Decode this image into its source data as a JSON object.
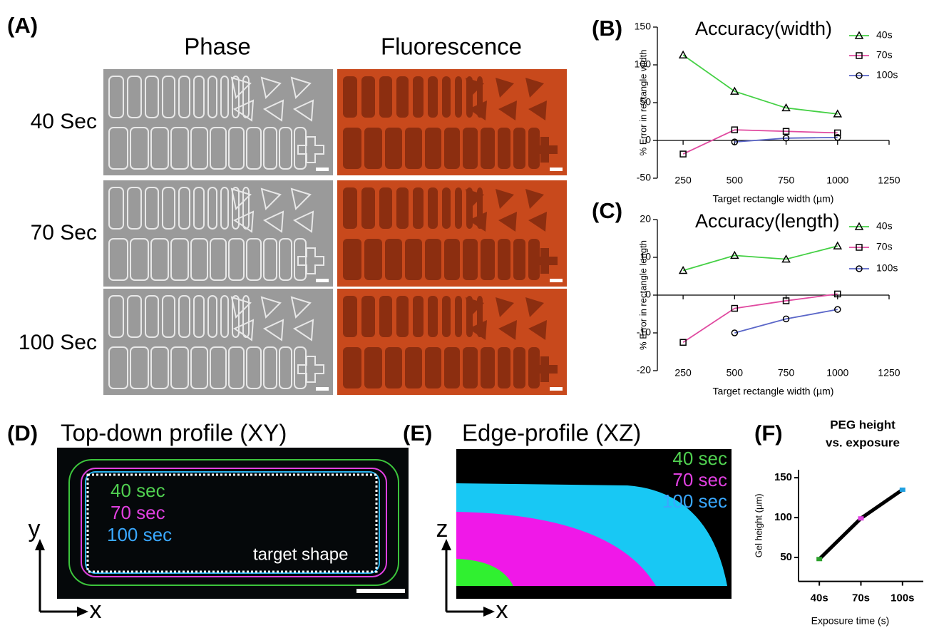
{
  "panels": {
    "A": {
      "label": "(A)",
      "columns": [
        "Phase",
        "Fluorescence"
      ],
      "rows": [
        "40 Sec",
        "70 Sec",
        "100 Sec"
      ]
    },
    "D": {
      "label": "(D)",
      "title": "Top-down profile (XY)",
      "legend": [
        "40 sec",
        "70 sec",
        "100 sec"
      ],
      "annotation": "target shape",
      "axes": [
        "y",
        "x"
      ]
    },
    "E": {
      "label": "(E)",
      "title": "Edge-profile (XZ)",
      "legend": [
        "40 sec",
        "70 sec",
        "100 sec"
      ],
      "axes": [
        "z",
        "x"
      ]
    }
  },
  "chart_data": [
    {
      "type": "line",
      "panel_label": "(B)",
      "title": "Accuracy(width)",
      "x_label": "Target rectangle width (µm)",
      "y_label": "% Error in rectangle width",
      "x": [
        250,
        500,
        750,
        1000
      ],
      "xlim": [
        125,
        1250
      ],
      "xticks": [
        250,
        500,
        750,
        1000,
        1250
      ],
      "ylim": [
        -50,
        150
      ],
      "yticks": [
        -50,
        0,
        50,
        100,
        150
      ],
      "series": [
        {
          "name": "40s",
          "color": "#44d044",
          "marker": "triangle",
          "values": [
            113,
            65,
            43,
            35
          ]
        },
        {
          "name": "70s",
          "color": "#e04aa0",
          "marker": "square",
          "values": [
            -18,
            14,
            12,
            10
          ]
        },
        {
          "name": "100s",
          "color": "#5a66c8",
          "marker": "circle",
          "values": [
            null,
            -2,
            3,
            4
          ]
        }
      ]
    },
    {
      "type": "line",
      "panel_label": "(C)",
      "title": "Accuracy(length)",
      "x_label": "Target rectangle width (µm)",
      "y_label": "% Error in rectangle length",
      "x": [
        250,
        500,
        750,
        1000
      ],
      "xlim": [
        125,
        1250
      ],
      "xticks": [
        250,
        500,
        750,
        1000,
        1250
      ],
      "ylim": [
        -20,
        20
      ],
      "yticks": [
        -20,
        -10,
        0,
        10,
        20
      ],
      "series": [
        {
          "name": "40s",
          "color": "#44d044",
          "marker": "triangle",
          "values": [
            6.5,
            10.5,
            9.5,
            13
          ]
        },
        {
          "name": "70s",
          "color": "#e04aa0",
          "marker": "square",
          "values": [
            -12.5,
            -3.5,
            -1.5,
            0.3
          ]
        },
        {
          "name": "100s",
          "color": "#5a66c8",
          "marker": "circle",
          "values": [
            null,
            -10,
            -6.3,
            -3.8
          ]
        }
      ]
    },
    {
      "type": "line",
      "panel_label": "(F)",
      "title": [
        "PEG height",
        "vs. exposure"
      ],
      "x_label": "Exposure time (s)",
      "y_label": "Gel height (µm)",
      "categories": [
        "40s",
        "70s",
        "100s"
      ],
      "values": [
        48,
        99,
        135
      ],
      "color": "#000000",
      "point_colors": [
        "#2ca02c",
        "#e040e0",
        "#20a0e0"
      ],
      "ylim": [
        20,
        160
      ],
      "yticks": [
        50,
        100,
        150
      ]
    }
  ]
}
